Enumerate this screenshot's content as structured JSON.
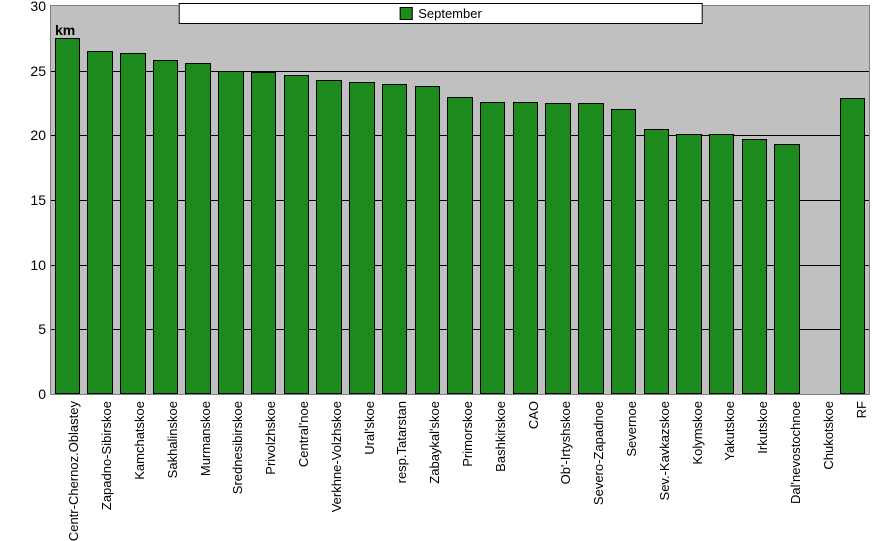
{
  "chart": {
    "type": "bar",
    "legend_label": "September",
    "y_axis_label": "km",
    "ylim": [
      0,
      30
    ],
    "ytick_step": 5,
    "yticks": [
      0,
      5,
      10,
      15,
      20,
      25,
      30
    ],
    "bar_color": "#1c8a1c",
    "bar_border_color": "#000000",
    "plot_background": "#c0c0c0",
    "grid_color": "#000000",
    "frame_border_color": "#808080",
    "legend_border_color": "#000000",
    "label_fontsize": 14,
    "tick_fontsize": 14,
    "x_tick_fontsize": 13,
    "bar_width_ratio": 0.78,
    "categories": [
      "Centr-Chernoz.Oblastey",
      "Zapadno-Sibirskoe",
      "Kamchatskoe",
      "Sakhalinskoe",
      "Murmanskoe",
      "Srednesibirskoe",
      "Privolzhskoe",
      "Central'noe",
      "Verkhne-Volzhskoe",
      "Ural'skoe",
      "resp.Tatarstan",
      "Zabaykal'skoe",
      "Primorskoe",
      "Bashkirskoe",
      "CAO",
      "Ob'-Irtyshskoe",
      "Severo-Zapadnoe",
      "Severnoe",
      "Sev.-Kavkazskoe",
      "Kolymskoe",
      "Yakutskoe",
      "Irkutskoe",
      "Dal'nevostochnoe",
      "Chukotskoe",
      "RF"
    ],
    "values": [
      27.5,
      26.5,
      26.4,
      25.8,
      25.6,
      25.0,
      24.9,
      24.7,
      24.3,
      24.1,
      24.0,
      23.8,
      23.0,
      22.6,
      22.6,
      22.5,
      22.5,
      22.0,
      20.5,
      20.1,
      20.1,
      19.7,
      19.3,
      0.0,
      22.9
    ]
  }
}
